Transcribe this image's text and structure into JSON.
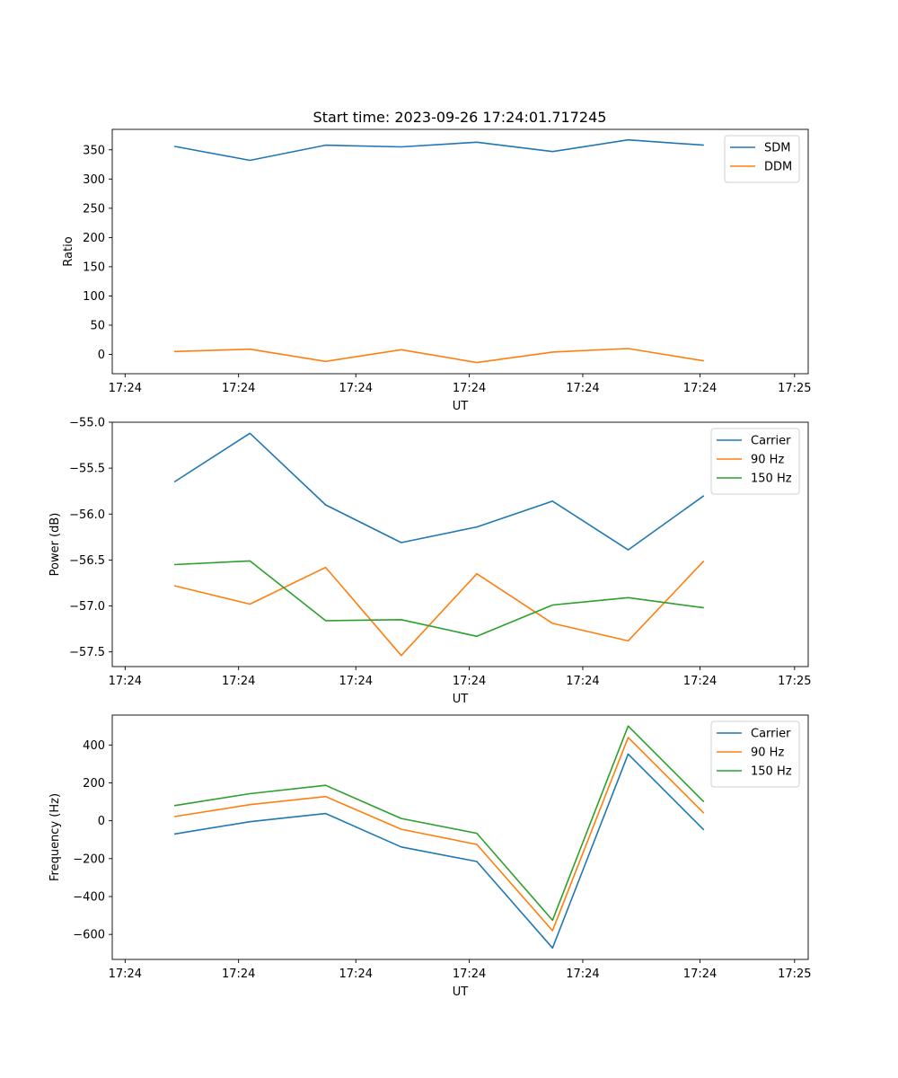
{
  "figure": {
    "title": "Start time: 2023-09-26 17:24:01.717245"
  },
  "chart_data": [
    {
      "type": "line",
      "title": "Start time: 2023-09-26 17:24:01.717245",
      "xlabel": "UT",
      "ylabel": "Ratio",
      "x": [
        1,
        2,
        3,
        4,
        5,
        6,
        7,
        8
      ],
      "xlim": [
        0.18,
        9.38
      ],
      "ylim": [
        -33,
        385
      ],
      "x_ticks": [
        0.35,
        1.85,
        3.4,
        4.9,
        6.4,
        7.95,
        9.2
      ],
      "x_tick_labels": [
        "17:24",
        "17:24",
        "17:24",
        "17:24",
        "17:24",
        "17:24",
        "17:25"
      ],
      "y_ticks": [
        0,
        50,
        100,
        150,
        200,
        250,
        300,
        350
      ],
      "y_tick_labels": [
        "0",
        "50",
        "100",
        "150",
        "200",
        "250",
        "300",
        "350"
      ],
      "legend": "top-right",
      "series": [
        {
          "name": "SDM",
          "color": "#1f77b4",
          "values": [
            356,
            332,
            358,
            355,
            363,
            347,
            367,
            358
          ]
        },
        {
          "name": "DDM",
          "color": "#ff7f0e",
          "values": [
            5,
            9,
            -12,
            8,
            -14,
            4,
            10,
            -11
          ]
        }
      ]
    },
    {
      "type": "line",
      "xlabel": "UT",
      "ylabel": "Power (dB)",
      "x": [
        1,
        2,
        3,
        4,
        5,
        6,
        7,
        8
      ],
      "xlim": [
        0.18,
        9.38
      ],
      "ylim": [
        -57.66,
        -55.0
      ],
      "x_ticks": [
        0.35,
        1.85,
        3.4,
        4.9,
        6.4,
        7.95,
        9.2
      ],
      "x_tick_labels": [
        "17:24",
        "17:24",
        "17:24",
        "17:24",
        "17:24",
        "17:24",
        "17:25"
      ],
      "y_ticks": [
        -57.5,
        -57.0,
        -56.5,
        -56.0,
        -55.5,
        -55.0
      ],
      "y_tick_labels": [
        "−57.5",
        "−57.0",
        "−56.5",
        "−56.0",
        "−55.5",
        "−55.0"
      ],
      "legend": "top-right",
      "series": [
        {
          "name": "Carrier",
          "color": "#1f77b4",
          "values": [
            -55.65,
            -55.12,
            -55.9,
            -56.31,
            -56.14,
            -55.86,
            -56.39,
            -55.8
          ]
        },
        {
          "name": "90 Hz",
          "color": "#ff7f0e",
          "values": [
            -56.78,
            -56.98,
            -56.58,
            -57.54,
            -56.65,
            -57.19,
            -57.38,
            -56.51
          ]
        },
        {
          "name": "150 Hz",
          "color": "#2ca02c",
          "values": [
            -56.55,
            -56.51,
            -57.16,
            -57.15,
            -57.33,
            -56.99,
            -56.91,
            -57.02
          ]
        }
      ]
    },
    {
      "type": "line",
      "xlabel": "UT",
      "ylabel": "Frequency (Hz)",
      "x": [
        1,
        2,
        3,
        4,
        5,
        6,
        7,
        8
      ],
      "xlim": [
        0.18,
        9.38
      ],
      "ylim": [
        -732,
        558
      ],
      "x_ticks": [
        0.35,
        1.85,
        3.4,
        4.9,
        6.4,
        7.95,
        9.2
      ],
      "x_tick_labels": [
        "17:24",
        "17:24",
        "17:24",
        "17:24",
        "17:24",
        "17:24",
        "17:25"
      ],
      "y_ticks": [
        -600,
        -400,
        -200,
        0,
        200,
        400
      ],
      "y_tick_labels": [
        "−600",
        "−400",
        "−200",
        "0",
        "200",
        "400"
      ],
      "legend": "top-right",
      "series": [
        {
          "name": "Carrier",
          "color": "#1f77b4",
          "values": [
            -70,
            -5,
            38,
            -138,
            -215,
            -672,
            352,
            -48
          ]
        },
        {
          "name": "90 Hz",
          "color": "#ff7f0e",
          "values": [
            22,
            85,
            128,
            -45,
            -125,
            -580,
            440,
            40
          ]
        },
        {
          "name": "150 Hz",
          "color": "#2ca02c",
          "values": [
            80,
            143,
            187,
            12,
            -66,
            -525,
            500,
            100
          ]
        }
      ]
    }
  ]
}
